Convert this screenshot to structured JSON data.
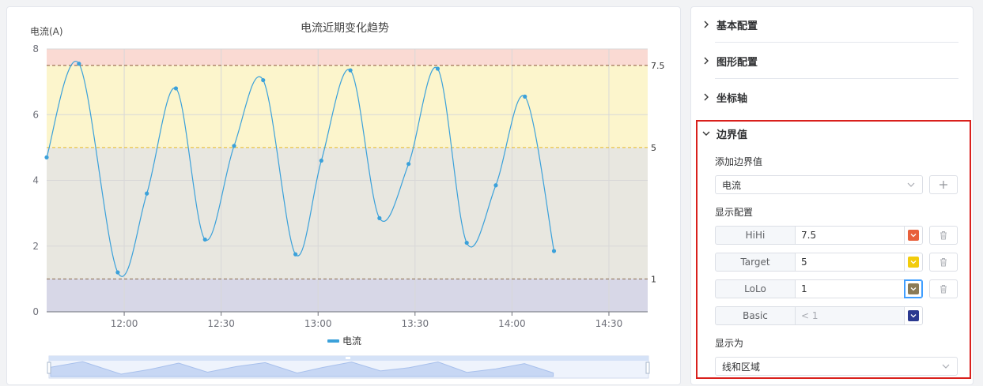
{
  "chart_data": {
    "type": "line",
    "title": "电流近期变化趋势",
    "ylabel": "电流(A)",
    "ylim": [
      0,
      8
    ],
    "yticks": [
      "0",
      "2",
      "4",
      "6",
      "8"
    ],
    "xticks": [
      "12:00",
      "12:30",
      "13:00",
      "13:30",
      "14:00",
      "14:30"
    ],
    "legend": "bottom-center",
    "grid": true,
    "series": [
      {
        "name": "电流",
        "color": "#3ba1da",
        "points": [
          [
            "11:36",
            4.7
          ],
          [
            "11:46",
            7.55
          ],
          [
            "11:58",
            1.2
          ],
          [
            "12:07",
            3.6
          ],
          [
            "12:16",
            6.8
          ],
          [
            "12:25",
            2.2
          ],
          [
            "12:34",
            5.05
          ],
          [
            "12:43",
            7.05
          ],
          [
            "12:53",
            1.75
          ],
          [
            "13:01",
            4.6
          ],
          [
            "13:10",
            7.35
          ],
          [
            "13:19",
            2.85
          ],
          [
            "13:28",
            4.5
          ],
          [
            "13:37",
            7.4
          ],
          [
            "13:46",
            2.1
          ],
          [
            "13:55",
            3.85
          ],
          [
            "14:04",
            6.55
          ],
          [
            "14:13",
            1.85
          ]
        ]
      }
    ],
    "thresholds": [
      {
        "label": "7.5",
        "value": 7.5,
        "color": "#8b5a3c"
      },
      {
        "label": "5",
        "value": 5,
        "color": "#e8b923"
      },
      {
        "label": "1",
        "value": 1,
        "color": "#8b6a4a"
      }
    ],
    "bands": [
      {
        "from": 7.5,
        "to": 8,
        "color": "#fadad3"
      },
      {
        "from": 5,
        "to": 7.5,
        "color": "#fcf5cc"
      },
      {
        "from": 1,
        "to": 5,
        "color": "#e8e7e0"
      },
      {
        "from": 0,
        "to": 1,
        "color": "#d7d7e7"
      }
    ]
  },
  "config": {
    "sections": {
      "basic": "基本配置",
      "graphic": "图形配置",
      "axis": "坐标轴",
      "boundary": "边界值"
    },
    "add_boundary_label": "添加边界值",
    "series_select": "电流",
    "display_config_label": "显示配置",
    "rows": [
      {
        "label": "HiHi",
        "value": "7.5",
        "color": "#e8603c"
      },
      {
        "label": "Target",
        "value": "5",
        "color": "#f2cc0c"
      },
      {
        "label": "LoLo",
        "value": "1",
        "color": "#8a7a56"
      },
      {
        "label": "Basic",
        "value": "< 1",
        "color": "#2b3990"
      }
    ],
    "display_as_label": "显示为",
    "display_as_value": "线和区域"
  }
}
